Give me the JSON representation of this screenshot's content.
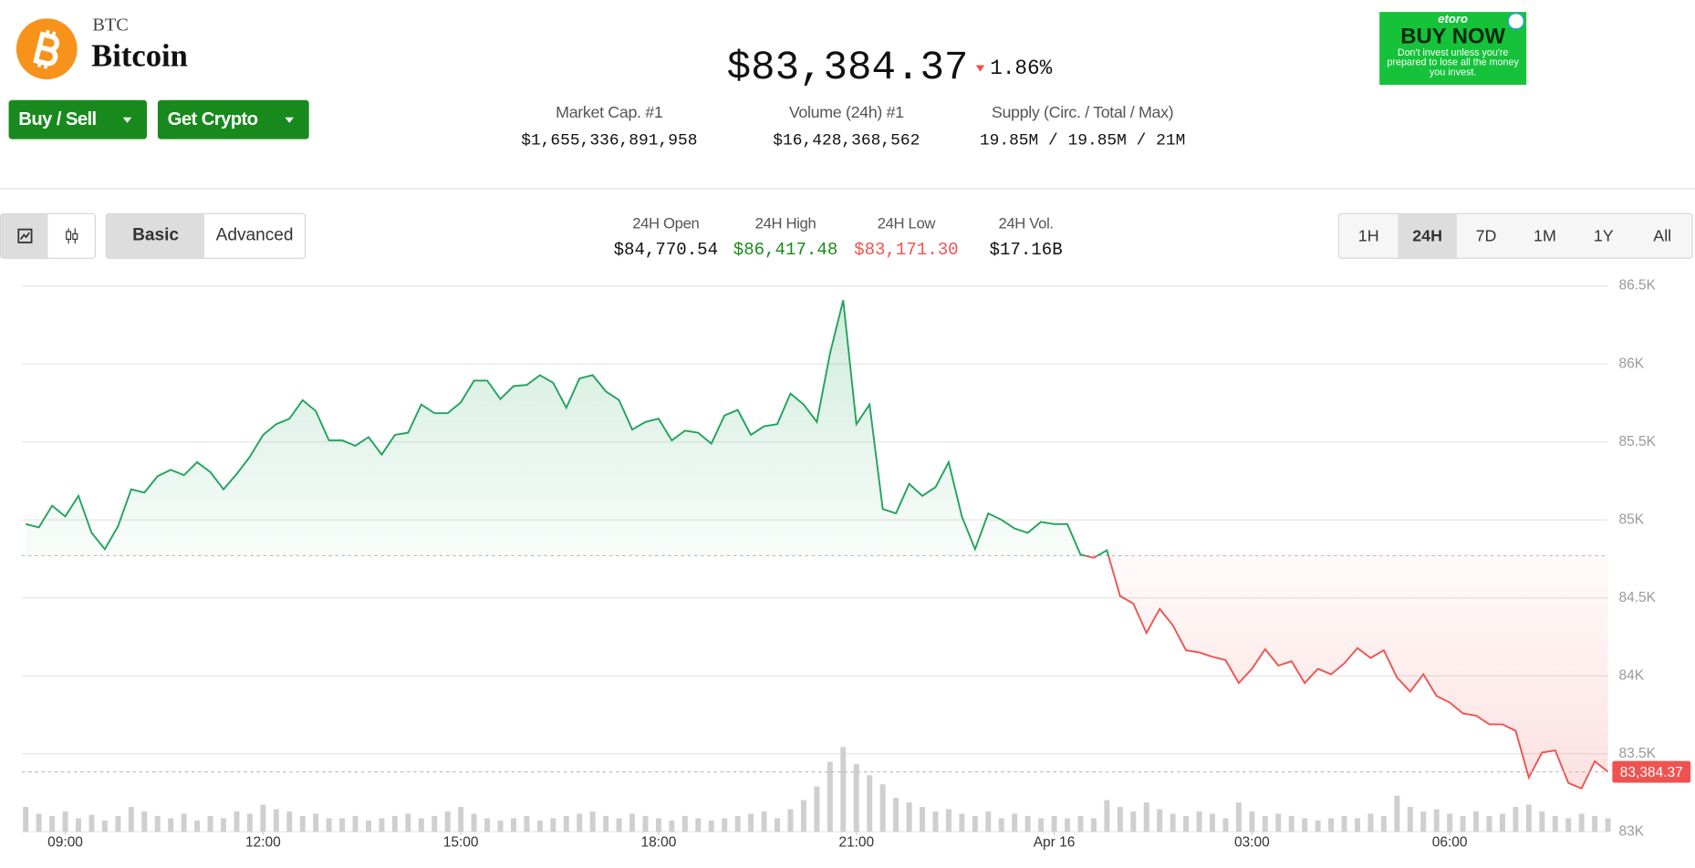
{
  "header": {
    "symbol": "BTC",
    "name": "Bitcoin",
    "buttons": [
      "Buy / Sell",
      "Get Crypto"
    ],
    "price": "$83,384.37",
    "change": "1.86%"
  },
  "stats": [
    {
      "label": "Market Cap. #1",
      "value": "$1,655,336,891,958"
    },
    {
      "label": "Volume (24h) #1",
      "value": "$16,428,368,562"
    },
    {
      "label": "Supply (Circ. / Total / Max)",
      "value": "19.85M / 19.85M / 21M"
    }
  ],
  "ad": {
    "brand": "etoro",
    "cta": "BUY NOW",
    "disclaimer": "Don't invest unless you're prepared to lose all the money you invest."
  },
  "toolbar": {
    "modes": [
      "Basic",
      "Advanced"
    ],
    "ranges": [
      "1H",
      "24H",
      "7D",
      "1M",
      "1Y",
      "All"
    ]
  },
  "day_stats": [
    {
      "label": "24H Open",
      "value": "$84,770.54"
    },
    {
      "label": "24H High",
      "value": "$86,417.48"
    },
    {
      "label": "24H Low",
      "value": "$83,171.30"
    },
    {
      "label": "24H Vol.",
      "value": "$17.16B"
    }
  ],
  "chart_data": {
    "type": "line",
    "x": [
      8.4,
      8.6,
      8.8,
      9,
      9.2,
      9.4,
      9.6,
      9.8,
      10,
      10.2,
      10.4,
      10.6,
      10.8,
      11,
      11.2,
      11.4,
      11.6,
      11.8,
      12,
      12.2,
      12.4,
      12.6,
      12.8,
      13,
      13.2,
      13.4,
      13.6,
      13.8,
      14,
      14.2,
      14.4,
      14.6,
      14.8,
      15,
      15.2,
      15.4,
      15.6,
      15.8,
      16,
      16.2,
      16.4,
      16.6,
      16.8,
      17,
      17.2,
      17.4,
      17.6,
      17.8,
      18,
      18.2,
      18.4,
      18.6,
      18.8,
      19,
      19.2,
      19.4,
      19.6,
      19.8,
      20,
      20.2,
      20.4,
      20.6,
      20.8,
      21,
      21.2,
      21.4,
      21.6,
      21.8,
      22,
      22.2,
      22.4,
      22.6,
      22.8,
      23,
      23.2,
      23.4,
      23.6,
      23.8,
      24,
      24.2,
      24.4,
      24.6,
      24.8,
      25,
      25.2,
      25.4,
      25.6,
      25.8,
      26,
      26.2,
      26.4,
      26.6,
      26.8,
      27,
      27.2,
      27.4,
      27.6,
      27.8,
      28,
      28.2,
      28.4,
      28.6,
      28.8,
      29,
      29.2,
      29.4,
      29.6,
      29.8,
      30,
      30.2,
      30.4,
      30.6,
      30.8,
      31,
      31.2,
      31.4,
      31.6,
      31.8,
      32,
      32.2,
      32.4
    ],
    "values": [
      84973,
      84952,
      85091,
      85022,
      85154,
      84917,
      84812,
      84959,
      85196,
      85175,
      85280,
      85321,
      85287,
      85370,
      85307,
      85196,
      85294,
      85405,
      85545,
      85614,
      85649,
      85768,
      85698,
      85510,
      85510,
      85475,
      85531,
      85419,
      85545,
      85559,
      85740,
      85684,
      85684,
      85754,
      85893,
      85893,
      85775,
      85858,
      85865,
      85928,
      85879,
      85719,
      85907,
      85928,
      85824,
      85768,
      85579,
      85628,
      85649,
      85510,
      85572,
      85559,
      85489,
      85670,
      85705,
      85545,
      85600,
      85614,
      85810,
      85740,
      85628,
      86068,
      86409,
      85614,
      85740,
      85070,
      85042,
      85231,
      85154,
      85210,
      85370,
      85022,
      84812,
      85042,
      85001,
      84945,
      84917,
      84987,
      84973,
      84973,
      84777,
      84757,
      84805,
      84512,
      84464,
      84275,
      84429,
      84324,
      84164,
      84150,
      84122,
      84101,
      83954,
      84045,
      84171,
      84066,
      84094,
      83954,
      84045,
      84010,
      84080,
      84178,
      84115,
      84164,
      83989,
      83899,
      84010,
      83871,
      83829,
      83759,
      83745,
      83689,
      83689,
      83648,
      83348,
      83508,
      83522,
      83313,
      83278,
      83452,
      83384.37
    ],
    "volume": [
      22,
      16,
      14,
      18,
      12,
      15,
      10,
      14,
      22,
      18,
      14,
      12,
      16,
      10,
      14,
      12,
      18,
      16,
      24,
      20,
      18,
      14,
      16,
      12,
      12,
      14,
      10,
      12,
      14,
      16,
      12,
      14,
      18,
      22,
      16,
      12,
      10,
      12,
      14,
      10,
      12,
      14,
      16,
      18,
      14,
      12,
      16,
      14,
      12,
      10,
      14,
      12,
      10,
      12,
      14,
      16,
      18,
      12,
      20,
      28,
      40,
      62,
      75,
      60,
      50,
      42,
      30,
      26,
      22,
      18,
      20,
      16,
      14,
      18,
      12,
      16,
      14,
      12,
      14,
      12,
      14,
      12,
      28,
      22,
      18,
      26,
      20,
      16,
      14,
      18,
      16,
      12,
      26,
      18,
      14,
      16,
      14,
      12,
      10,
      12,
      14,
      12,
      16,
      14,
      32,
      22,
      18,
      20,
      16,
      14,
      18,
      14,
      16,
      22,
      24,
      18,
      14,
      12,
      16,
      14,
      12
    ],
    "open": 84770.54,
    "current": {
      "value": 83384.37,
      "label": "83,384.37"
    },
    "up_color": "#21a35c",
    "down_color": "#ef5350",
    "volume_color": "#cfcfcf",
    "xlim": [
      8.34,
      32.4
    ],
    "xticks": [
      {
        "value": 9,
        "label": "09:00"
      },
      {
        "value": 12,
        "label": "12:00"
      },
      {
        "value": 15,
        "label": "15:00"
      },
      {
        "value": 18,
        "label": "18:00"
      },
      {
        "value": 21,
        "label": "21:00"
      },
      {
        "value": 24,
        "label": "Apr 16"
      },
      {
        "value": 27,
        "label": "03:00"
      },
      {
        "value": 30,
        "label": "06:00"
      }
    ],
    "ylim": [
      83000,
      86500
    ],
    "yticks": [
      {
        "value": 83000,
        "label": "83K"
      },
      {
        "value": 83500,
        "label": "83.5K"
      },
      {
        "value": 84000,
        "label": "84K"
      },
      {
        "value": 84500,
        "label": "84.5K"
      },
      {
        "value": 85000,
        "label": "85K"
      },
      {
        "value": 85500,
        "label": "85.5K"
      },
      {
        "value": 86000,
        "label": "86K"
      },
      {
        "value": 86500,
        "label": "86.5K"
      }
    ],
    "grid": true
  }
}
